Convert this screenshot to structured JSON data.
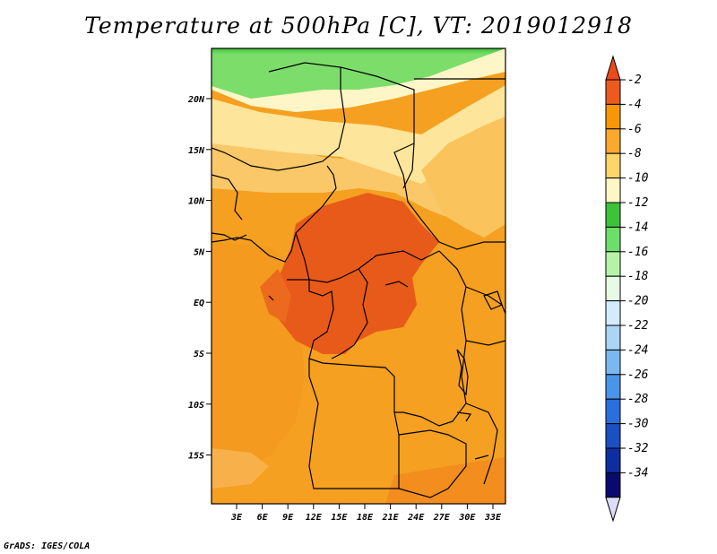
{
  "title": "Temperature at 500hPa [C], VT: 2019012918",
  "footer": "GrADS: IGES/COLA",
  "map": {
    "lat_labels": [
      "20N",
      "15N",
      "10N",
      "5N",
      "EQ",
      "5S",
      "10S",
      "15S"
    ],
    "lon_labels": [
      "3E",
      "6E",
      "9E",
      "12E",
      "15E",
      "18E",
      "21E",
      "24E",
      "27E",
      "30E",
      "33E"
    ],
    "fill_colors": {
      "warmest": "#e85a1a",
      "warm": "#f08a1e",
      "mid": "#f5a020",
      "cool": "#fac868",
      "cooler": "#fde59b",
      "coolest": "#fff6c7",
      "green_light": "#7ddd6b",
      "green_dark": "#3bc63b"
    }
  },
  "colorbar": {
    "labels": [
      "-2",
      "-4",
      "-6",
      "-8",
      "-10",
      "-12",
      "-14",
      "-16",
      "-18",
      "-20",
      "-22",
      "-24",
      "-26",
      "-28",
      "-30",
      "-32",
      "-34"
    ],
    "colors": [
      "#ec5a1f",
      "#f79708",
      "#fba92d",
      "#fdd56b",
      "#fff6c6",
      "#3cc33a",
      "#6ede6a",
      "#b5f3a6",
      "#e6fae6",
      "#d2ecfb",
      "#aad5f5",
      "#7ab8ef",
      "#4a94ea",
      "#2a6fde",
      "#1a50c2",
      "#0e2ea0",
      "#0a0a6e"
    ],
    "top_arrow_color": "#ec4a1a",
    "bottom_arrow_color": "#dcdcf8"
  }
}
